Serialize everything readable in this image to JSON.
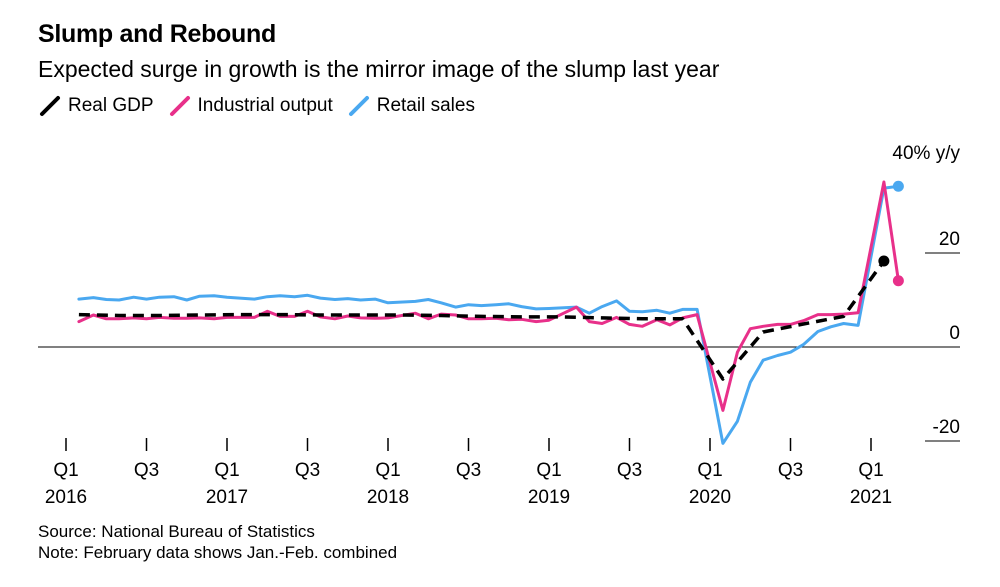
{
  "header": {
    "title": "Slump and Rebound",
    "subtitle": "Expected surge in growth is the mirror image of the slump last year"
  },
  "legend": [
    {
      "label": "Real GDP",
      "color": "#000000"
    },
    {
      "label": "Industrial output",
      "color": "#e8308a"
    },
    {
      "label": "Retail sales",
      "color": "#4aa8f0"
    }
  ],
  "footer": {
    "source": "Source: National Bureau of Statistics",
    "note": "Note: February data shows Jan.-Feb. combined"
  },
  "chart_data": {
    "type": "line",
    "y_unit_label": "40% y/y",
    "ylim": [
      -20,
      40
    ],
    "y_ticks": [
      {
        "value": 40,
        "label": "40% y/y"
      },
      {
        "value": 20,
        "label": "20"
      },
      {
        "value": 0,
        "label": "0"
      },
      {
        "value": -20,
        "label": "-20"
      }
    ],
    "x_ticks": [
      {
        "label": "Q1",
        "year": "2016",
        "x": 2016.0
      },
      {
        "label": "Q3",
        "year": "",
        "x": 2016.5
      },
      {
        "label": "Q1",
        "year": "2017",
        "x": 2017.0
      },
      {
        "label": "Q3",
        "year": "",
        "x": 2017.5
      },
      {
        "label": "Q1",
        "year": "2018",
        "x": 2018.0
      },
      {
        "label": "Q3",
        "year": "",
        "x": 2018.5
      },
      {
        "label": "Q1",
        "year": "2019",
        "x": 2019.0
      },
      {
        "label": "Q3",
        "year": "",
        "x": 2019.5
      },
      {
        "label": "Q1",
        "year": "2020",
        "x": 2020.0
      },
      {
        "label": "Q3",
        "year": "",
        "x": 2020.5
      },
      {
        "label": "Q1",
        "year": "2021",
        "x": 2021.0
      }
    ],
    "xlim": [
      2015.95,
      2021.55
    ],
    "series": [
      {
        "name": "Real GDP",
        "color": "#000000",
        "dashed": true,
        "points": [
          [
            2016.08,
            6.9
          ],
          [
            2016.33,
            6.7
          ],
          [
            2016.58,
            6.7
          ],
          [
            2016.83,
            6.8
          ],
          [
            2017.08,
            6.9
          ],
          [
            2017.33,
            6.9
          ],
          [
            2017.58,
            6.8
          ],
          [
            2017.83,
            6.8
          ],
          [
            2018.08,
            6.8
          ],
          [
            2018.33,
            6.7
          ],
          [
            2018.58,
            6.5
          ],
          [
            2018.83,
            6.4
          ],
          [
            2019.08,
            6.4
          ],
          [
            2019.33,
            6.2
          ],
          [
            2019.58,
            6.0
          ],
          [
            2019.83,
            6.0
          ],
          [
            2020.08,
            -6.8
          ],
          [
            2020.33,
            3.2
          ],
          [
            2020.58,
            4.9
          ],
          [
            2020.83,
            6.5
          ],
          [
            2021.08,
            18.3
          ]
        ],
        "end_dot": true
      },
      {
        "name": "Industrial output",
        "color": "#e8308a",
        "dashed": false,
        "points": [
          [
            2016.08,
            5.4
          ],
          [
            2016.17,
            6.8
          ],
          [
            2016.25,
            6.0
          ],
          [
            2016.33,
            6.0
          ],
          [
            2016.42,
            6.2
          ],
          [
            2016.5,
            6.0
          ],
          [
            2016.58,
            6.3
          ],
          [
            2016.67,
            6.1
          ],
          [
            2016.75,
            6.1
          ],
          [
            2016.83,
            6.2
          ],
          [
            2016.92,
            6.0
          ],
          [
            2017.0,
            6.3
          ],
          [
            2017.17,
            6.3
          ],
          [
            2017.25,
            7.6
          ],
          [
            2017.33,
            6.5
          ],
          [
            2017.42,
            6.5
          ],
          [
            2017.5,
            7.6
          ],
          [
            2017.58,
            6.4
          ],
          [
            2017.67,
            6.0
          ],
          [
            2017.75,
            6.6
          ],
          [
            2017.83,
            6.2
          ],
          [
            2017.92,
            6.1
          ],
          [
            2018.0,
            6.2
          ],
          [
            2018.17,
            7.2
          ],
          [
            2018.25,
            6.0
          ],
          [
            2018.33,
            7.0
          ],
          [
            2018.42,
            6.8
          ],
          [
            2018.5,
            6.0
          ],
          [
            2018.58,
            6.0
          ],
          [
            2018.67,
            6.1
          ],
          [
            2018.75,
            5.8
          ],
          [
            2018.83,
            5.9
          ],
          [
            2018.92,
            5.4
          ],
          [
            2019.0,
            5.7
          ],
          [
            2019.17,
            8.5
          ],
          [
            2019.25,
            5.4
          ],
          [
            2019.33,
            5.0
          ],
          [
            2019.42,
            6.3
          ],
          [
            2019.5,
            4.8
          ],
          [
            2019.58,
            4.4
          ],
          [
            2019.67,
            5.8
          ],
          [
            2019.75,
            4.7
          ],
          [
            2019.83,
            6.2
          ],
          [
            2019.92,
            6.9
          ],
          [
            2020.08,
            -13.5
          ],
          [
            2020.17,
            -1.1
          ],
          [
            2020.25,
            3.9
          ],
          [
            2020.33,
            4.4
          ],
          [
            2020.42,
            4.8
          ],
          [
            2020.5,
            4.8
          ],
          [
            2020.58,
            5.6
          ],
          [
            2020.67,
            6.9
          ],
          [
            2020.75,
            6.9
          ],
          [
            2020.83,
            7.0
          ],
          [
            2020.92,
            7.3
          ],
          [
            2021.08,
            35.1
          ],
          [
            2021.17,
            14.1
          ]
        ],
        "end_dot": true
      },
      {
        "name": "Retail sales",
        "color": "#4aa8f0",
        "dashed": false,
        "points": [
          [
            2016.08,
            10.2
          ],
          [
            2016.17,
            10.5
          ],
          [
            2016.25,
            10.1
          ],
          [
            2016.33,
            10.0
          ],
          [
            2016.42,
            10.6
          ],
          [
            2016.5,
            10.2
          ],
          [
            2016.58,
            10.6
          ],
          [
            2016.67,
            10.7
          ],
          [
            2016.75,
            10.0
          ],
          [
            2016.83,
            10.8
          ],
          [
            2016.92,
            10.9
          ],
          [
            2017.0,
            10.6
          ],
          [
            2017.17,
            10.2
          ],
          [
            2017.25,
            10.7
          ],
          [
            2017.33,
            10.9
          ],
          [
            2017.42,
            10.7
          ],
          [
            2017.5,
            11.0
          ],
          [
            2017.58,
            10.4
          ],
          [
            2017.67,
            10.1
          ],
          [
            2017.75,
            10.3
          ],
          [
            2017.83,
            10.0
          ],
          [
            2017.92,
            10.2
          ],
          [
            2018.0,
            9.4
          ],
          [
            2018.17,
            9.7
          ],
          [
            2018.25,
            10.1
          ],
          [
            2018.33,
            9.4
          ],
          [
            2018.42,
            8.5
          ],
          [
            2018.5,
            9.0
          ],
          [
            2018.58,
            8.8
          ],
          [
            2018.67,
            9.0
          ],
          [
            2018.75,
            9.2
          ],
          [
            2018.83,
            8.6
          ],
          [
            2018.92,
            8.1
          ],
          [
            2019.0,
            8.2
          ],
          [
            2019.17,
            8.5
          ],
          [
            2019.25,
            7.2
          ],
          [
            2019.33,
            8.6
          ],
          [
            2019.42,
            9.8
          ],
          [
            2019.5,
            7.6
          ],
          [
            2019.58,
            7.5
          ],
          [
            2019.67,
            7.8
          ],
          [
            2019.75,
            7.2
          ],
          [
            2019.83,
            8.0
          ],
          [
            2019.92,
            8.0
          ],
          [
            2020.08,
            -20.5
          ],
          [
            2020.17,
            -15.8
          ],
          [
            2020.25,
            -7.5
          ],
          [
            2020.33,
            -2.8
          ],
          [
            2020.42,
            -1.8
          ],
          [
            2020.5,
            -1.1
          ],
          [
            2020.58,
            0.5
          ],
          [
            2020.67,
            3.3
          ],
          [
            2020.75,
            4.3
          ],
          [
            2020.83,
            5.0
          ],
          [
            2020.92,
            4.6
          ],
          [
            2021.08,
            33.8
          ],
          [
            2021.17,
            34.2
          ]
        ],
        "end_dot": true
      }
    ]
  }
}
